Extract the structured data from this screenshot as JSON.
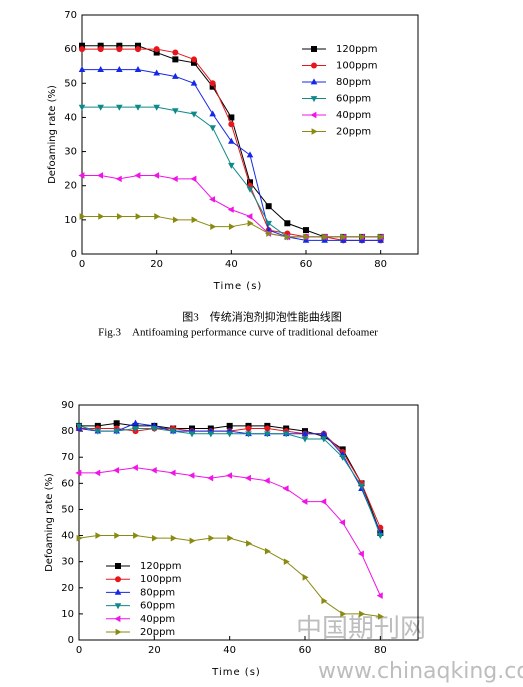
{
  "chart_data": [
    {
      "type": "line",
      "x_label": "Time (s)",
      "y_label": "Defoaming rate (%)",
      "caption": [
        "图3　传统消泡剂抑泡性能曲线图",
        "Fig.3　Antifoaming performance curve of traditional defoamer"
      ],
      "x": [
        0,
        5,
        10,
        15,
        20,
        25,
        30,
        35,
        40,
        45,
        50,
        55,
        60,
        65,
        70,
        75,
        80
      ],
      "xlim": [
        0,
        90
      ],
      "xticks": [
        0,
        20,
        40,
        60,
        80
      ],
      "ylim": [
        0,
        70
      ],
      "yticks": [
        0,
        10,
        20,
        30,
        40,
        50,
        60,
        70
      ],
      "legend": "upper right",
      "series": [
        {
          "name": "120ppm",
          "color": "#000000",
          "marker": "square",
          "values": [
            61,
            61,
            61,
            61,
            59,
            57,
            56,
            49,
            40,
            21,
            14,
            9,
            7,
            5,
            5,
            5,
            5
          ]
        },
        {
          "name": "100ppm",
          "color": "#e8161c",
          "marker": "circle",
          "values": [
            60,
            60,
            60,
            60,
            60,
            59,
            57,
            50,
            38,
            20,
            7,
            6,
            5,
            5,
            4,
            4,
            4
          ]
        },
        {
          "name": "80ppm",
          "color": "#1428e6",
          "marker": "triangle-up",
          "values": [
            54,
            54,
            54,
            54,
            53,
            52,
            50,
            41,
            33,
            29,
            7,
            5,
            4,
            4,
            4,
            4,
            4
          ]
        },
        {
          "name": "60ppm",
          "color": "#0e8a8a",
          "marker": "triangle-down",
          "values": [
            43,
            43,
            43,
            43,
            43,
            42,
            41,
            37,
            26,
            19,
            9,
            5,
            5,
            5,
            5,
            5,
            5
          ]
        },
        {
          "name": "40ppm",
          "color": "#f014e6",
          "marker": "triangle-left",
          "values": [
            23,
            23,
            22,
            23,
            23,
            22,
            22,
            16,
            13,
            11,
            6,
            5,
            5,
            5,
            5,
            5,
            5
          ]
        },
        {
          "name": "20ppm",
          "color": "#8a8a10",
          "marker": "triangle-right",
          "values": [
            11,
            11,
            11,
            11,
            11,
            10,
            10,
            8,
            8,
            9,
            6,
            5,
            5,
            5,
            5,
            5,
            5
          ]
        }
      ]
    },
    {
      "type": "line",
      "x_label": "Time (s)",
      "y_label": "Defoaming rate (%)",
      "x": [
        0,
        5,
        10,
        15,
        20,
        25,
        30,
        35,
        40,
        45,
        50,
        55,
        60,
        65,
        70,
        75,
        80
      ],
      "xlim": [
        0,
        90
      ],
      "xticks": [
        0,
        20,
        40,
        60,
        80
      ],
      "ylim": [
        0,
        90
      ],
      "yticks": [
        0,
        10,
        20,
        30,
        40,
        50,
        60,
        70,
        80,
        90
      ],
      "legend": "lower left",
      "series": [
        {
          "name": "120ppm",
          "color": "#000000",
          "marker": "square",
          "values": [
            82,
            82,
            83,
            82,
            82,
            81,
            81,
            81,
            82,
            82,
            82,
            81,
            80,
            78,
            73,
            60,
            41
          ]
        },
        {
          "name": "100ppm",
          "color": "#e8161c",
          "marker": "circle",
          "values": [
            81,
            81,
            81,
            80,
            81,
            81,
            80,
            80,
            80,
            81,
            81,
            80,
            79,
            79,
            72,
            60,
            43
          ]
        },
        {
          "name": "80ppm",
          "color": "#1428e6",
          "marker": "triangle-up",
          "values": [
            81,
            80,
            80,
            83,
            82,
            80,
            80,
            80,
            80,
            79,
            79,
            79,
            79,
            79,
            71,
            58,
            41
          ]
        },
        {
          "name": "60ppm",
          "color": "#0e8a8a",
          "marker": "triangle-down",
          "values": [
            82,
            80,
            80,
            81,
            81,
            80,
            79,
            79,
            79,
            79,
            79,
            79,
            77,
            77,
            70,
            59,
            40
          ]
        },
        {
          "name": "40ppm",
          "color": "#f014e6",
          "marker": "triangle-left",
          "values": [
            64,
            64,
            65,
            66,
            65,
            64,
            63,
            62,
            63,
            62,
            61,
            58,
            53,
            53,
            45,
            33,
            17
          ]
        },
        {
          "name": "20ppm",
          "color": "#8a8a10",
          "marker": "triangle-right",
          "values": [
            39,
            40,
            40,
            40,
            39,
            39,
            38,
            39,
            39,
            37,
            34,
            30,
            24,
            15,
            10,
            10,
            9
          ]
        }
      ]
    }
  ],
  "watermark": [
    "中国期刊网",
    "www.chinaqking.com"
  ]
}
